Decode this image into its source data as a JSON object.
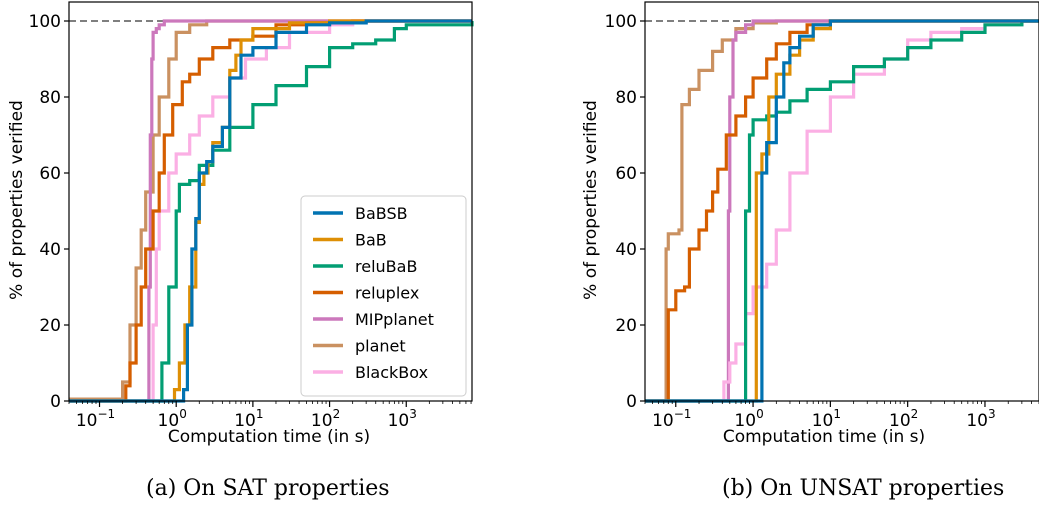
{
  "colors": {
    "BaBSB": "#0173b2",
    "BaB": "#de8f05",
    "reluBaB": "#029e73",
    "reluplex": "#d55e00",
    "MIPplanet": "#cc78bc",
    "planet": "#ca9161",
    "BlackBox": "#fbafe4",
    "reference": "#7f7f7f"
  },
  "captions": {
    "a": "(a) On SAT properties",
    "b": "(b) On UNSAT properties"
  },
  "chart_data": [
    {
      "type": "line",
      "xscale": "log",
      "xlabel": "Computation time (in s)",
      "ylabel": "% of properties verified",
      "xlim": [
        0.04,
        7200
      ],
      "ylim": [
        0,
        105
      ],
      "xticks": [
        {
          "value": 0.1,
          "base": "10",
          "exp": "−1"
        },
        {
          "value": 1,
          "base": "10",
          "exp": "0"
        },
        {
          "value": 10,
          "base": "10",
          "exp": "1"
        },
        {
          "value": 100,
          "base": "10",
          "exp": "2"
        },
        {
          "value": 1000,
          "base": "10",
          "exp": "3"
        }
      ],
      "yticks": [
        0,
        20,
        40,
        60,
        80,
        100
      ],
      "reference_line": 100,
      "legend": true,
      "legend_position": "lower-right",
      "series": [
        {
          "name": "BaBSB",
          "points": [
            [
              0.04,
              0
            ],
            [
              1.1,
              0
            ],
            [
              1.25,
              3
            ],
            [
              1.4,
              20
            ],
            [
              1.6,
              40
            ],
            [
              1.8,
              48
            ],
            [
              2,
              60
            ],
            [
              2.5,
              63
            ],
            [
              3,
              67
            ],
            [
              4,
              72
            ],
            [
              5,
              85
            ],
            [
              7,
              91
            ],
            [
              10,
              93
            ],
            [
              20,
              97
            ],
            [
              50,
              99
            ],
            [
              100,
              99.5
            ],
            [
              300,
              100
            ],
            [
              7200,
              100
            ]
          ]
        },
        {
          "name": "BaB",
          "points": [
            [
              0.04,
              0
            ],
            [
              0.8,
              0
            ],
            [
              0.95,
              3
            ],
            [
              1.1,
              10
            ],
            [
              1.3,
              20
            ],
            [
              1.5,
              30
            ],
            [
              1.8,
              47
            ],
            [
              2,
              57
            ],
            [
              2.3,
              60
            ],
            [
              2.6,
              63
            ],
            [
              3,
              68
            ],
            [
              4,
              72
            ],
            [
              5,
              87
            ],
            [
              6,
              91
            ],
            [
              7,
              95
            ],
            [
              10,
              98
            ],
            [
              30,
              99.5
            ],
            [
              100,
              100
            ],
            [
              7200,
              100
            ]
          ]
        },
        {
          "name": "reluBaB",
          "points": [
            [
              0.04,
              0
            ],
            [
              0.55,
              0
            ],
            [
              0.65,
              10
            ],
            [
              0.8,
              30
            ],
            [
              1,
              50
            ],
            [
              1.1,
              57
            ],
            [
              1.5,
              58
            ],
            [
              2,
              62
            ],
            [
              3,
              66
            ],
            [
              5,
              72
            ],
            [
              10,
              78
            ],
            [
              20,
              83
            ],
            [
              50,
              88
            ],
            [
              100,
              93
            ],
            [
              200,
              94
            ],
            [
              400,
              95
            ],
            [
              700,
              98
            ],
            [
              1000,
              99
            ],
            [
              7200,
              100
            ]
          ]
        },
        {
          "name": "reluplex",
          "points": [
            [
              0.04,
              0
            ],
            [
              0.2,
              0
            ],
            [
              0.22,
              4
            ],
            [
              0.25,
              10
            ],
            [
              0.3,
              20
            ],
            [
              0.35,
              30
            ],
            [
              0.4,
              40
            ],
            [
              0.5,
              50
            ],
            [
              0.6,
              60
            ],
            [
              0.7,
              70
            ],
            [
              0.9,
              78
            ],
            [
              1.2,
              84
            ],
            [
              1.5,
              86
            ],
            [
              2,
              90
            ],
            [
              3,
              93
            ],
            [
              5,
              95
            ],
            [
              10,
              96
            ],
            [
              20,
              99
            ],
            [
              50,
              99.5
            ],
            [
              200,
              100
            ],
            [
              7200,
              100
            ]
          ]
        },
        {
          "name": "MIPplanet",
          "points": [
            [
              0.04,
              0
            ],
            [
              0.42,
              0
            ],
            [
              0.44,
              30
            ],
            [
              0.46,
              70
            ],
            [
              0.48,
              90
            ],
            [
              0.5,
              97
            ],
            [
              0.55,
              98
            ],
            [
              0.6,
              99
            ],
            [
              0.7,
              100
            ],
            [
              7200,
              100
            ]
          ]
        },
        {
          "name": "planet",
          "points": [
            [
              0.04,
              0.5
            ],
            [
              0.15,
              0.5
            ],
            [
              0.2,
              5
            ],
            [
              0.25,
              20
            ],
            [
              0.3,
              35
            ],
            [
              0.35,
              45
            ],
            [
              0.4,
              55
            ],
            [
              0.5,
              70
            ],
            [
              0.6,
              80
            ],
            [
              0.8,
              90
            ],
            [
              1,
              97
            ],
            [
              1.5,
              99
            ],
            [
              2.5,
              100
            ],
            [
              7200,
              100
            ]
          ]
        },
        {
          "name": "BlackBox",
          "points": [
            [
              0.04,
              0
            ],
            [
              0.45,
              0
            ],
            [
              0.5,
              20
            ],
            [
              0.55,
              40
            ],
            [
              0.6,
              50
            ],
            [
              0.8,
              60
            ],
            [
              1,
              65
            ],
            [
              1.5,
              70
            ],
            [
              2,
              75
            ],
            [
              3,
              80
            ],
            [
              5,
              85
            ],
            [
              8,
              90
            ],
            [
              15,
              93
            ],
            [
              30,
              97
            ],
            [
              100,
              99
            ],
            [
              200,
              100
            ],
            [
              7200,
              100
            ]
          ]
        }
      ]
    },
    {
      "type": "line",
      "xscale": "log",
      "xlabel": "Computation time (in s)",
      "ylabel": "% of properties verified",
      "xlim": [
        0.04,
        5000
      ],
      "ylim": [
        0,
        105
      ],
      "xticks": [
        {
          "value": 0.1,
          "base": "10",
          "exp": "−1"
        },
        {
          "value": 1,
          "base": "10",
          "exp": "0"
        },
        {
          "value": 10,
          "base": "10",
          "exp": "1"
        },
        {
          "value": 100,
          "base": "10",
          "exp": "2"
        },
        {
          "value": 1000,
          "base": "10",
          "exp": "3"
        }
      ],
      "yticks": [
        0,
        20,
        40,
        60,
        80,
        100
      ],
      "reference_line": 100,
      "legend": false,
      "series": [
        {
          "name": "BaBSB",
          "points": [
            [
              0.04,
              0
            ],
            [
              1.15,
              0
            ],
            [
              1.3,
              60
            ],
            [
              1.5,
              68
            ],
            [
              2,
              80
            ],
            [
              2.5,
              89
            ],
            [
              3,
              93
            ],
            [
              4,
              96
            ],
            [
              6,
              99
            ],
            [
              10,
              100
            ],
            [
              5000,
              100
            ]
          ]
        },
        {
          "name": "BaB",
          "points": [
            [
              0.04,
              0
            ],
            [
              0.95,
              0
            ],
            [
              1.1,
              60
            ],
            [
              1.3,
              65
            ],
            [
              1.6,
              80
            ],
            [
              2,
              86
            ],
            [
              3,
              91
            ],
            [
              4,
              95
            ],
            [
              6,
              98
            ],
            [
              10,
              100
            ],
            [
              5000,
              100
            ]
          ]
        },
        {
          "name": "reluBaB",
          "points": [
            [
              0.04,
              0
            ],
            [
              0.7,
              0
            ],
            [
              0.8,
              50
            ],
            [
              0.9,
              70
            ],
            [
              1,
              74
            ],
            [
              1.5,
              75
            ],
            [
              2,
              76
            ],
            [
              3,
              79
            ],
            [
              5,
              82
            ],
            [
              10,
              84
            ],
            [
              20,
              88
            ],
            [
              50,
              90
            ],
            [
              100,
              93
            ],
            [
              200,
              95
            ],
            [
              500,
              97
            ],
            [
              1000,
              99
            ],
            [
              3000,
              100
            ],
            [
              5000,
              100
            ]
          ]
        },
        {
          "name": "reluplex",
          "points": [
            [
              0.04,
              0
            ],
            [
              0.075,
              0
            ],
            [
              0.08,
              24
            ],
            [
              0.1,
              29
            ],
            [
              0.13,
              30
            ],
            [
              0.15,
              40
            ],
            [
              0.2,
              45
            ],
            [
              0.25,
              50
            ],
            [
              0.3,
              55
            ],
            [
              0.35,
              61
            ],
            [
              0.45,
              70
            ],
            [
              0.6,
              75
            ],
            [
              0.8,
              80
            ],
            [
              1,
              85
            ],
            [
              1.5,
              90
            ],
            [
              2,
              94
            ],
            [
              3,
              97
            ],
            [
              5,
              99
            ],
            [
              10,
              100
            ],
            [
              5000,
              100
            ]
          ]
        },
        {
          "name": "MIPplanet",
          "points": [
            [
              0.04,
              0
            ],
            [
              0.45,
              0
            ],
            [
              0.48,
              50
            ],
            [
              0.5,
              80
            ],
            [
              0.55,
              95
            ],
            [
              0.6,
              97
            ],
            [
              0.8,
              99
            ],
            [
              1,
              100
            ],
            [
              5000,
              100
            ]
          ]
        },
        {
          "name": "planet",
          "points": [
            [
              0.04,
              0
            ],
            [
              0.07,
              0
            ],
            [
              0.075,
              40
            ],
            [
              0.08,
              44
            ],
            [
              0.11,
              45
            ],
            [
              0.12,
              78
            ],
            [
              0.15,
              82
            ],
            [
              0.2,
              87
            ],
            [
              0.3,
              92
            ],
            [
              0.4,
              95
            ],
            [
              0.6,
              98
            ],
            [
              1,
              99.5
            ],
            [
              2,
              100
            ],
            [
              5000,
              100
            ]
          ]
        },
        {
          "name": "BlackBox",
          "points": [
            [
              0.04,
              0
            ],
            [
              0.38,
              0
            ],
            [
              0.42,
              5
            ],
            [
              0.5,
              10
            ],
            [
              0.6,
              15
            ],
            [
              0.8,
              23
            ],
            [
              1,
              30
            ],
            [
              1.5,
              36
            ],
            [
              2,
              45
            ],
            [
              3,
              60
            ],
            [
              5,
              71
            ],
            [
              10,
              80
            ],
            [
              20,
              86
            ],
            [
              50,
              90
            ],
            [
              100,
              95
            ],
            [
              200,
              97
            ],
            [
              500,
              98
            ],
            [
              1000,
              99
            ],
            [
              3000,
              100
            ],
            [
              5000,
              100
            ]
          ]
        }
      ]
    }
  ]
}
